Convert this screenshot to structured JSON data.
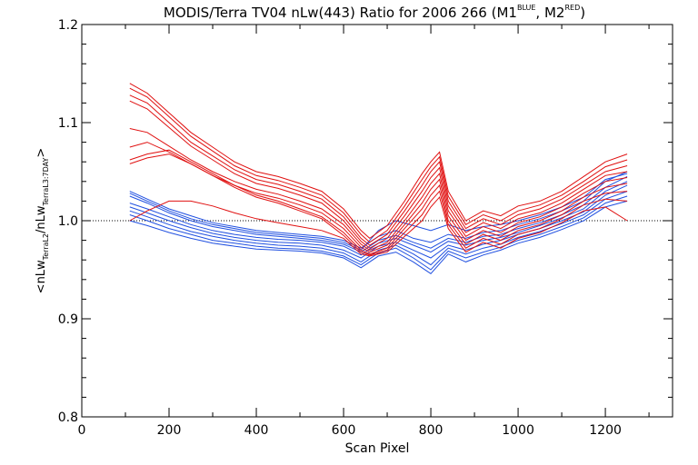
{
  "chart_data": {
    "type": "line",
    "title": {
      "main": "MODIS/Terra TV04 nLw(443) Ratio for 2006 266 (M1",
      "sup1": "BLUE",
      "mid": ", M2",
      "sup2": "RED",
      "end": ")"
    },
    "xlabel": "Scan Pixel",
    "ylabel": {
      "a": "<nLw",
      "sub1": "TerraL2",
      "b": "/nLw",
      "sub2": "TerraL3:7DAY",
      "c": ">"
    },
    "xlim": [
      0,
      1354
    ],
    "ylim": [
      0.8,
      1.2
    ],
    "x_ticks": [
      "0",
      "200",
      "400",
      "600",
      "800",
      "1000",
      "1200"
    ],
    "y_ticks": [
      "0.8",
      "0.9",
      "1.0",
      "1.1",
      "1.2"
    ],
    "reference_line": 1.0,
    "colors": {
      "blue": "#1f4fe0",
      "red": "#e01010",
      "axis": "#000000"
    },
    "series": [
      {
        "group": "blue",
        "x": [
          110,
          150,
          200,
          250,
          300,
          350,
          400,
          450,
          500,
          550,
          600,
          640,
          680,
          720,
          760,
          800,
          840,
          880,
          920,
          960,
          1000,
          1050,
          1100,
          1150,
          1200,
          1250
        ],
        "y": [
          1.03,
          1.022,
          1.012,
          1.005,
          0.998,
          0.994,
          0.99,
          0.988,
          0.986,
          0.984,
          0.98,
          0.972,
          0.984,
          0.99,
          0.982,
          0.978,
          0.986,
          0.982,
          0.988,
          0.99,
          0.996,
          1.002,
          1.01,
          1.02,
          1.04,
          1.05
        ]
      },
      {
        "group": "blue",
        "x": [
          110,
          150,
          200,
          250,
          300,
          350,
          400,
          450,
          500,
          550,
          600,
          640,
          680,
          720,
          760,
          800,
          840,
          880,
          920,
          960,
          1000,
          1050,
          1100,
          1150,
          1200,
          1250
        ],
        "y": [
          1.025,
          1.018,
          1.008,
          1.0,
          0.994,
          0.99,
          0.986,
          0.984,
          0.982,
          0.98,
          0.976,
          0.968,
          0.98,
          0.985,
          0.978,
          0.972,
          0.982,
          0.978,
          0.984,
          0.986,
          0.992,
          0.998,
          1.006,
          1.016,
          1.034,
          1.045
        ]
      },
      {
        "group": "blue",
        "x": [
          110,
          150,
          200,
          250,
          300,
          350,
          400,
          450,
          500,
          550,
          600,
          640,
          680,
          720,
          760,
          800,
          840,
          880,
          920,
          960,
          1000,
          1050,
          1100,
          1150,
          1200,
          1250
        ],
        "y": [
          1.018,
          1.012,
          1.004,
          0.996,
          0.99,
          0.986,
          0.983,
          0.981,
          0.98,
          0.978,
          0.974,
          0.965,
          0.977,
          0.982,
          0.975,
          0.968,
          0.979,
          0.975,
          0.98,
          0.983,
          0.988,
          0.995,
          1.003,
          1.012,
          1.03,
          1.04
        ]
      },
      {
        "group": "blue",
        "x": [
          110,
          150,
          200,
          250,
          300,
          350,
          400,
          450,
          500,
          550,
          600,
          640,
          680,
          720,
          760,
          800,
          840,
          880,
          920,
          960,
          1000,
          1050,
          1100,
          1150,
          1200,
          1250
        ],
        "y": [
          1.014,
          1.008,
          1.0,
          0.993,
          0.987,
          0.983,
          0.98,
          0.978,
          0.977,
          0.975,
          0.97,
          0.962,
          0.974,
          0.978,
          0.97,
          0.962,
          0.975,
          0.97,
          0.976,
          0.98,
          0.986,
          0.992,
          1.0,
          1.009,
          1.026,
          1.036
        ]
      },
      {
        "group": "blue",
        "x": [
          110,
          150,
          200,
          250,
          300,
          350,
          400,
          450,
          500,
          550,
          600,
          640,
          680,
          720,
          760,
          800,
          840,
          880,
          920,
          960,
          1000,
          1050,
          1100,
          1150,
          1200,
          1250
        ],
        "y": [
          1.01,
          1.004,
          0.996,
          0.989,
          0.984,
          0.98,
          0.977,
          0.975,
          0.974,
          0.972,
          0.967,
          0.958,
          0.97,
          0.975,
          0.966,
          0.955,
          0.972,
          0.966,
          0.972,
          0.976,
          0.983,
          0.989,
          0.997,
          1.006,
          1.022,
          1.03
        ]
      },
      {
        "group": "blue",
        "x": [
          110,
          150,
          200,
          250,
          300,
          350,
          400,
          450,
          500,
          550,
          600,
          640,
          680,
          720,
          760,
          800,
          840,
          880,
          920,
          960,
          1000,
          1050,
          1100,
          1150,
          1200,
          1250
        ],
        "y": [
          1.006,
          1.0,
          0.992,
          0.986,
          0.98,
          0.977,
          0.974,
          0.972,
          0.971,
          0.969,
          0.964,
          0.955,
          0.967,
          0.972,
          0.962,
          0.95,
          0.969,
          0.962,
          0.968,
          0.973,
          0.98,
          0.986,
          0.994,
          1.003,
          1.018,
          1.025
        ]
      },
      {
        "group": "blue",
        "x": [
          110,
          150,
          200,
          250,
          300,
          350,
          400,
          450,
          500,
          550,
          600,
          640,
          680,
          720,
          760,
          800,
          840,
          880,
          920,
          960,
          1000,
          1050,
          1100,
          1150,
          1200,
          1250
        ],
        "y": [
          1.0,
          0.995,
          0.988,
          0.982,
          0.977,
          0.974,
          0.971,
          0.97,
          0.969,
          0.967,
          0.962,
          0.952,
          0.964,
          0.968,
          0.958,
          0.946,
          0.966,
          0.958,
          0.965,
          0.97,
          0.977,
          0.983,
          0.991,
          1.0,
          1.014,
          1.02
        ]
      },
      {
        "group": "blue",
        "x": [
          110,
          150,
          200,
          250,
          300,
          350,
          400,
          450,
          500,
          550,
          600,
          640,
          680,
          720,
          760,
          800,
          840,
          880,
          920,
          960,
          1000,
          1050,
          1100,
          1150,
          1200,
          1250
        ],
        "y": [
          1.028,
          1.02,
          1.01,
          1.002,
          0.996,
          0.992,
          0.988,
          0.986,
          0.984,
          0.982,
          0.978,
          0.97,
          0.99,
          1.0,
          0.995,
          0.99,
          0.996,
          0.99,
          0.994,
          0.996,
          1.0,
          1.006,
          1.014,
          1.024,
          1.042,
          1.048
        ]
      },
      {
        "group": "red",
        "x": [
          110,
          150,
          200,
          250,
          300,
          350,
          400,
          450,
          500,
          550,
          600,
          640,
          660,
          700,
          740,
          780,
          800,
          820,
          840,
          880,
          920,
          960,
          1000,
          1050,
          1100,
          1150,
          1200,
          1250
        ],
        "y": [
          1.14,
          1.13,
          1.11,
          1.09,
          1.075,
          1.06,
          1.05,
          1.045,
          1.038,
          1.03,
          1.012,
          0.99,
          0.982,
          0.995,
          1.02,
          1.048,
          1.06,
          1.07,
          1.03,
          1.0,
          1.01,
          1.005,
          1.015,
          1.02,
          1.03,
          1.045,
          1.06,
          1.068
        ]
      },
      {
        "group": "red",
        "x": [
          110,
          150,
          200,
          250,
          300,
          350,
          400,
          450,
          500,
          550,
          600,
          640,
          660,
          700,
          740,
          780,
          800,
          820,
          840,
          880,
          920,
          960,
          1000,
          1050,
          1100,
          1150,
          1200,
          1250
        ],
        "y": [
          1.135,
          1.126,
          1.106,
          1.086,
          1.071,
          1.056,
          1.046,
          1.041,
          1.034,
          1.026,
          1.008,
          0.986,
          0.978,
          0.99,
          1.015,
          1.042,
          1.055,
          1.065,
          1.025,
          0.996,
          1.006,
          1.0,
          1.01,
          1.016,
          1.026,
          1.04,
          1.055,
          1.062
        ]
      },
      {
        "group": "red",
        "x": [
          110,
          150,
          200,
          250,
          300,
          350,
          400,
          450,
          500,
          550,
          600,
          640,
          660,
          700,
          740,
          780,
          800,
          820,
          840,
          880,
          920,
          960,
          1000,
          1050,
          1100,
          1150,
          1200,
          1250
        ],
        "y": [
          1.128,
          1.12,
          1.1,
          1.08,
          1.066,
          1.052,
          1.042,
          1.037,
          1.03,
          1.022,
          1.004,
          0.982,
          0.975,
          0.986,
          1.01,
          1.036,
          1.05,
          1.06,
          1.02,
          0.992,
          1.002,
          0.996,
          1.006,
          1.012,
          1.022,
          1.036,
          1.05,
          1.056
        ]
      },
      {
        "group": "red",
        "x": [
          110,
          150,
          200,
          250,
          300,
          350,
          400,
          450,
          500,
          550,
          600,
          640,
          660,
          700,
          740,
          780,
          800,
          820,
          840,
          880,
          920,
          960,
          1000,
          1050,
          1100,
          1150,
          1200,
          1250
        ],
        "y": [
          1.122,
          1.114,
          1.095,
          1.076,
          1.062,
          1.048,
          1.038,
          1.033,
          1.026,
          1.018,
          1.0,
          0.979,
          0.972,
          0.982,
          1.005,
          1.03,
          1.044,
          1.054,
          1.015,
          0.988,
          0.998,
          0.992,
          1.002,
          1.008,
          1.018,
          1.032,
          1.046,
          1.05
        ]
      },
      {
        "group": "red",
        "x": [
          110,
          150,
          200,
          250,
          300,
          350,
          400,
          450,
          500,
          550,
          600,
          640,
          660,
          700,
          740,
          780,
          800,
          820,
          840,
          880,
          920,
          960,
          1000,
          1050,
          1100,
          1150,
          1200,
          1250
        ],
        "y": [
          1.094,
          1.09,
          1.076,
          1.062,
          1.05,
          1.04,
          1.032,
          1.027,
          1.02,
          1.012,
          0.996,
          0.976,
          0.97,
          0.978,
          1.0,
          1.024,
          1.038,
          1.048,
          1.01,
          0.984,
          0.994,
          0.988,
          0.998,
          1.004,
          1.014,
          1.028,
          1.04,
          1.044
        ]
      },
      {
        "group": "red",
        "x": [
          110,
          150,
          200,
          250,
          300,
          350,
          400,
          450,
          500,
          550,
          600,
          640,
          660,
          700,
          740,
          780,
          800,
          820,
          840,
          880,
          920,
          960,
          1000,
          1050,
          1100,
          1150,
          1200,
          1250
        ],
        "y": [
          1.075,
          1.08,
          1.07,
          1.058,
          1.046,
          1.036,
          1.028,
          1.023,
          1.016,
          1.008,
          0.992,
          0.973,
          0.968,
          0.975,
          0.996,
          1.018,
          1.032,
          1.042,
          1.005,
          0.98,
          0.99,
          0.984,
          0.994,
          1.0,
          1.01,
          1.024,
          1.034,
          1.038
        ]
      },
      {
        "group": "red",
        "x": [
          110,
          150,
          200,
          250,
          300,
          350,
          400,
          450,
          500,
          550,
          600,
          640,
          660,
          700,
          740,
          780,
          800,
          820,
          840,
          880,
          920,
          960,
          1000,
          1050,
          1100,
          1150,
          1200,
          1250
        ],
        "y": [
          1.062,
          1.068,
          1.072,
          1.06,
          1.048,
          1.036,
          1.026,
          1.02,
          1.012,
          1.004,
          0.988,
          0.97,
          0.966,
          0.972,
          0.992,
          1.012,
          1.026,
          1.036,
          1.0,
          0.976,
          0.986,
          0.98,
          0.99,
          0.996,
          1.006,
          1.02,
          1.028,
          1.03
        ]
      },
      {
        "group": "red",
        "x": [
          110,
          150,
          200,
          250,
          300,
          350,
          400,
          450,
          500,
          550,
          600,
          640,
          660,
          700,
          740,
          780,
          800,
          820,
          840,
          880,
          920,
          960,
          1000,
          1050,
          1100,
          1150,
          1200,
          1250
        ],
        "y": [
          1.058,
          1.064,
          1.068,
          1.058,
          1.046,
          1.034,
          1.024,
          1.018,
          1.01,
          1.002,
          0.985,
          0.968,
          0.965,
          0.97,
          0.988,
          1.006,
          1.02,
          1.03,
          0.996,
          0.972,
          0.982,
          0.976,
          0.986,
          0.992,
          1.002,
          1.016,
          1.022,
          1.02
        ]
      },
      {
        "group": "red",
        "x": [
          110,
          150,
          200,
          250,
          300,
          350,
          400,
          450,
          500,
          550,
          600,
          640,
          660,
          700,
          740,
          780,
          800,
          820,
          840,
          880,
          920,
          960,
          1000,
          1050,
          1100,
          1150,
          1200,
          1250
        ],
        "y": [
          1.0,
          1.01,
          1.02,
          1.02,
          1.015,
          1.008,
          1.002,
          0.998,
          0.994,
          0.99,
          0.982,
          0.966,
          0.964,
          0.968,
          0.984,
          1.0,
          1.014,
          1.024,
          0.992,
          0.968,
          0.978,
          0.972,
          0.982,
          0.988,
          0.998,
          1.01,
          1.014,
          1.0
        ]
      }
    ]
  }
}
